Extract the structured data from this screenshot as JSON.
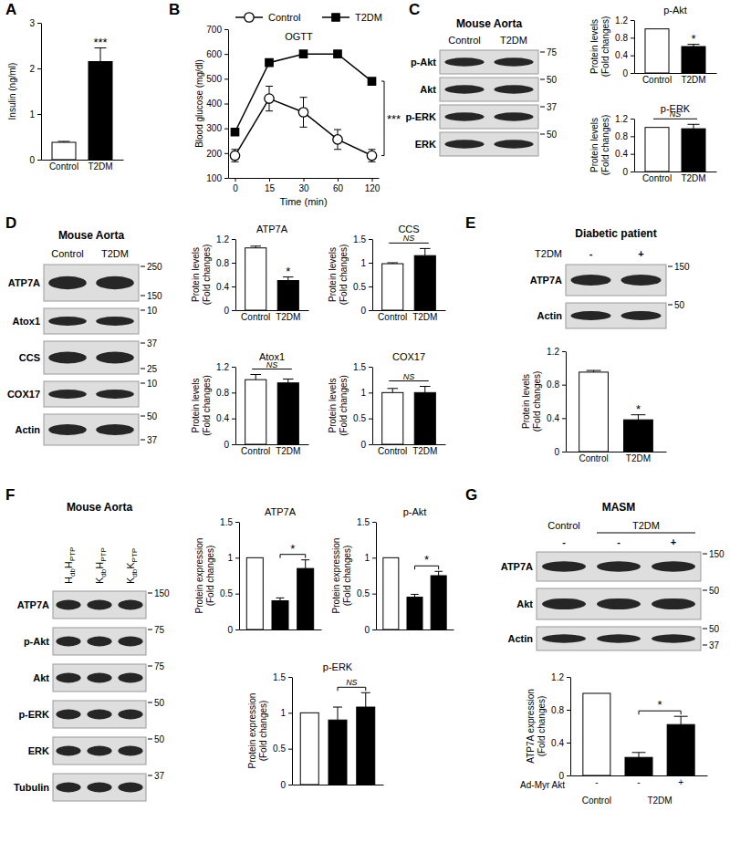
{
  "chart_data": [
    {
      "panel": "A",
      "type": "bar",
      "categories": [
        "Control",
        "T2DM"
      ],
      "values": [
        0.38,
        2.15
      ],
      "errors": [
        0.02,
        0.3
      ],
      "colors": [
        "#ffffff",
        "#000000"
      ],
      "y_label": [
        "Insulin (ng/ml)"
      ],
      "ylim": [
        0,
        3
      ],
      "yticks": [
        0,
        1,
        2,
        3
      ],
      "annotation": "***"
    },
    {
      "panel": "B",
      "type": "line",
      "title": "OGTT",
      "categories": [
        "0",
        "15",
        "30",
        "60",
        "120"
      ],
      "x_label": "Time (min)",
      "y_label": [
        "Blood glucose (mg/dl)"
      ],
      "ylim": [
        100,
        700
      ],
      "yticks": [
        100,
        200,
        300,
        400,
        500,
        600,
        700
      ],
      "legend": "top",
      "annotation": "***",
      "series": [
        {
          "name": "Control",
          "color": "#ffffff",
          "marker": "circle",
          "values": [
            190,
            420,
            365,
            255,
            190
          ],
          "errors": [
            25,
            50,
            60,
            40,
            25
          ]
        },
        {
          "name": "T2DM",
          "color": "#000000",
          "marker": "square",
          "values": [
            285,
            565,
            600,
            600,
            490
          ]
        }
      ]
    },
    {
      "type": "bar",
      "title": "p-Akt",
      "categories": [
        "Control",
        "T2DM"
      ],
      "values": [
        1,
        0.6
      ],
      "errors": [
        null,
        0.05
      ],
      "colors": [
        "#ffffff",
        "#000000"
      ],
      "y_label": [
        "Protein levels",
        "(Fold changes)"
      ],
      "ylim": [
        0,
        1.2
      ],
      "yticks": [
        0,
        0.4,
        0.8,
        1.2
      ],
      "annotation": "*"
    },
    {
      "type": "bar",
      "title": "p-ERK",
      "categories": [
        "Control",
        "T2DM"
      ],
      "values": [
        1,
        0.97
      ],
      "errors": [
        null,
        0.1
      ],
      "colors": [
        "#ffffff",
        "#000000"
      ],
      "y_label": [
        "Protein levels",
        "(Fold changes)"
      ],
      "ylim": [
        0,
        1.2
      ],
      "yticks": [
        0,
        0.4,
        0.8,
        1.2
      ],
      "annotation": "NS"
    },
    {
      "type": "bar",
      "title": "ATP7A",
      "categories": [
        "Control",
        "T2DM"
      ],
      "values": [
        1.05,
        0.5
      ],
      "errors": [
        0.03,
        0.06
      ],
      "colors": [
        "#ffffff",
        "#000000"
      ],
      "y_label": [
        "Protein levels",
        "(Fold changes)"
      ],
      "ylim": [
        0,
        1.2
      ],
      "yticks": [
        0,
        0.4,
        0.8,
        1.2
      ],
      "annotation": "*"
    },
    {
      "type": "bar",
      "title": "CCS",
      "categories": [
        "Control",
        "T2DM"
      ],
      "values": [
        0.98,
        1.15
      ],
      "errors": [
        0.02,
        0.15
      ],
      "colors": [
        "#ffffff",
        "#000000"
      ],
      "y_label": [
        "Protein levels",
        "(Fold changes)"
      ],
      "ylim": [
        0,
        1.5
      ],
      "yticks": [
        0,
        0.5,
        1,
        1.5
      ],
      "annotation": "NS"
    },
    {
      "type": "bar",
      "title": "Atox1",
      "categories": [
        "Control",
        "T2DM"
      ],
      "values": [
        1.0,
        0.95
      ],
      "errors": [
        0.08,
        0.06
      ],
      "colors": [
        "#ffffff",
        "#000000"
      ],
      "y_label": [
        "Protein levels",
        "(Fold changes)"
      ],
      "ylim": [
        0,
        1.2
      ],
      "yticks": [
        0,
        0.4,
        0.8,
        1.2
      ],
      "annotation": "NS"
    },
    {
      "type": "bar",
      "title": "COX17",
      "categories": [
        "Control",
        "T2DM"
      ],
      "values": [
        1.0,
        1.0
      ],
      "errors": [
        0.08,
        0.12
      ],
      "colors": [
        "#ffffff",
        "#000000"
      ],
      "y_label": [
        "Protein levels",
        "(Fold changes)"
      ],
      "ylim": [
        0,
        1.5
      ],
      "yticks": [
        0,
        0.5,
        1,
        1.5
      ],
      "annotation": "NS"
    },
    {
      "type": "bar",
      "categories": [
        "Control",
        "T2DM"
      ],
      "values": [
        0.95,
        0.38
      ],
      "errors": [
        0.02,
        0.06
      ],
      "colors": [
        "#ffffff",
        "#000000"
      ],
      "y_label": [
        "Protein levels",
        "(Fold changes)"
      ],
      "ylim": [
        0,
        1.2
      ],
      "yticks": [
        0,
        0.4,
        0.8,
        1.2
      ],
      "annotation": "*"
    },
    {
      "type": "bar",
      "title": "ATP7A",
      "categories": [
        null,
        null,
        null
      ],
      "values": [
        1,
        0.4,
        0.85
      ],
      "errors": [
        null,
        0.04,
        0.12
      ],
      "colors": [
        "#ffffff",
        "#000000",
        "#000000"
      ],
      "y_label": [
        "Protein expression",
        "(Fold changes)"
      ],
      "ylim": [
        0,
        1.5
      ],
      "yticks": [
        0,
        0.5,
        1,
        1.5
      ],
      "annotation": "*"
    },
    {
      "type": "bar",
      "title": "p-Akt",
      "categories": [
        null,
        null,
        null
      ],
      "values": [
        1,
        0.45,
        0.75
      ],
      "errors": [
        null,
        0.04,
        0.06
      ],
      "colors": [
        "#ffffff",
        "#000000",
        "#000000"
      ],
      "y_label": [
        "Protein expression",
        "(Fold changes)"
      ],
      "ylim": [
        0,
        1.5
      ],
      "yticks": [
        0,
        0.5,
        1,
        1.5
      ],
      "annotation": "*"
    },
    {
      "type": "bar",
      "title": "p-ERK",
      "categories": [
        null,
        null,
        null
      ],
      "values": [
        1,
        0.9,
        1.08
      ],
      "errors": [
        null,
        0.18,
        0.2
      ],
      "colors": [
        "#ffffff",
        "#000000",
        "#000000"
      ],
      "y_label": [
        "Protein expression",
        "(Fold changes)"
      ],
      "ylim": [
        0,
        1.5
      ],
      "yticks": [
        0,
        0.5,
        1,
        1.5
      ],
      "annotation": "NS"
    },
    {
      "type": "bar",
      "categories": [
        "-",
        "-",
        "+"
      ],
      "x_label": "Ad-Myr Akt",
      "group_labels": [
        "Control",
        "T2DM"
      ],
      "values": [
        1,
        0.22,
        0.62
      ],
      "errors": [
        null,
        0.06,
        0.1
      ],
      "colors": [
        "#ffffff",
        "#000000",
        "#000000"
      ],
      "y_label": [
        "ATP7A expression",
        "(Fold changes)"
      ],
      "ylim": [
        0,
        1.2
      ],
      "yticks": [
        0,
        0.4,
        0.8,
        1.2
      ],
      "annotation": "*"
    }
  ],
  "blots": [
    {
      "panel": "C",
      "title": "Mouse Aorta",
      "columns": [
        "Control",
        "T2DM"
      ],
      "rows": [
        {
          "label": "p-Akt",
          "markers": [
            75
          ]
        },
        {
          "label": "Akt",
          "markers": [
            50
          ]
        },
        {
          "label": "p-ERK",
          "markers": [
            37
          ]
        },
        {
          "label": "ERK",
          "markers": [
            50
          ]
        }
      ]
    },
    {
      "panel": "D",
      "title": "Mouse Aorta",
      "columns": [
        "Control",
        "T2DM"
      ],
      "rows": [
        {
          "label": "ATP7A",
          "markers": [
            250,
            150
          ]
        },
        {
          "label": "Atox1",
          "markers": [
            10
          ]
        },
        {
          "label": "CCS",
          "markers": [
            37,
            25
          ]
        },
        {
          "label": "COX17",
          "markers": [
            10
          ]
        },
        {
          "label": "Actin",
          "markers": [
            50,
            37
          ]
        }
      ]
    },
    {
      "panel": "E",
      "title": "Diabetic patient",
      "column_title": "T2DM",
      "columns": [
        "-",
        "+"
      ],
      "rows": [
        {
          "label": "ATP7A",
          "markers": [
            150
          ]
        },
        {
          "label": "Actin",
          "markers": [
            50
          ]
        }
      ]
    },
    {
      "panel": "F",
      "title": "Mouse Aorta",
      "columns": [
        [
          "H",
          "db",
          "H",
          "PTP"
        ],
        [
          "K",
          "db",
          "H",
          "PTP"
        ],
        [
          "K",
          "db",
          "K",
          "PTP"
        ]
      ],
      "rows": [
        {
          "label": "ATP7A",
          "markers": [
            150
          ]
        },
        {
          "label": "p-Akt",
          "markers": [
            75
          ]
        },
        {
          "label": "Akt",
          "markers": [
            75
          ]
        },
        {
          "label": "p-ERK",
          "markers": [
            50
          ]
        },
        {
          "label": "ERK",
          "markers": [
            50
          ]
        },
        {
          "label": "Tubulin",
          "markers": [
            37
          ]
        }
      ]
    },
    {
      "panel": "G",
      "title": "MASM",
      "column_groups": [
        "Control",
        "T2DM"
      ],
      "columns": [
        "-",
        "-",
        "+"
      ],
      "rows": [
        {
          "label": "ATP7A",
          "markers": [
            150
          ]
        },
        {
          "label": "Akt",
          "markers": [
            50
          ]
        },
        {
          "label": "Actin",
          "markers": [
            50,
            37
          ]
        }
      ]
    }
  ]
}
